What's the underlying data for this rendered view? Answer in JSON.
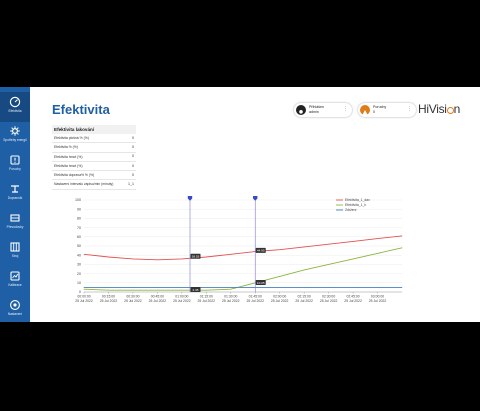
{
  "app": {
    "title": "Efektivita",
    "logo_main": "HiVisi",
    "logo_tail": "n",
    "accent": "#1f5fa6",
    "logo_accent": "#e07b1a"
  },
  "sidebar": {
    "items": [
      {
        "label": "Efektivita",
        "icon": "gauge-icon",
        "active": true
      },
      {
        "label": "Spotřeby energií",
        "icon": "gear-icon",
        "active": false
      },
      {
        "label": "Poruchy",
        "icon": "alert-icon",
        "active": false
      },
      {
        "label": "Dopravník",
        "icon": "conveyor-icon",
        "active": false
      },
      {
        "label": "Převodovky",
        "icon": "drive-icon",
        "active": false
      },
      {
        "label": "Stroj",
        "icon": "grid-icon",
        "active": false
      },
      {
        "label": "Kalibrace",
        "icon": "calibration-icon",
        "active": false
      },
      {
        "label": "Nastavení",
        "icon": "settings-icon",
        "active": false
      }
    ]
  },
  "header": {
    "user": {
      "line1": "Přihlášen",
      "line2": "admin",
      "icon": "user-icon"
    },
    "alarms": {
      "line1": "Poruchy",
      "line2": "0",
      "icon": "alarm-icon"
    }
  },
  "panel": {
    "title": "Efektivita lakování",
    "rows": [
      {
        "label": "Efektivita plošná % (%)",
        "value": "0"
      },
      {
        "label": "Efektivita % (%)",
        "value": "0"
      },
      {
        "label": "Efektivita hmot (%)",
        "value": "0"
      },
      {
        "label": "Efektivita hmot (%)",
        "value": "0"
      },
      {
        "label": "Efektivita doprava% % (%)",
        "value": "0"
      },
      {
        "label": "Nastavení intervalu zápisu/min (minuty)",
        "value": "1_1"
      }
    ]
  },
  "chart_data": {
    "type": "line",
    "ylim": [
      0,
      100
    ],
    "yticks": [
      0,
      10,
      20,
      30,
      40,
      50,
      60,
      70,
      80,
      90,
      100
    ],
    "x_ticks": [
      {
        "time": "00:00:00",
        "date": "25 Jul 2022"
      },
      {
        "time": "00:15:00",
        "date": "25 Jul 2022"
      },
      {
        "time": "00:30:00",
        "date": "25 Jul 2022"
      },
      {
        "time": "00:45:00",
        "date": "25 Jul 2022"
      },
      {
        "time": "01:00:00",
        "date": "25 Jul 2022"
      },
      {
        "time": "01:15:00",
        "date": "25 Jul 2022"
      },
      {
        "time": "01:30:00",
        "date": "25 Jul 2022"
      },
      {
        "time": "01:45:00",
        "date": "25 Jul 2022"
      },
      {
        "time": "02:00:00",
        "date": "25 Jul 2022"
      },
      {
        "time": "02:15:00",
        "date": "25 Jul 2022"
      },
      {
        "time": "02:30:00",
        "date": "25 Jul 2022"
      },
      {
        "time": "02:45:00",
        "date": "25 Jul 2022"
      },
      {
        "time": "03:00:00",
        "date": "25 Jul 2022"
      }
    ],
    "x_range": [
      "00:00:00",
      "03:15:00"
    ],
    "series": [
      {
        "name": "Efektivita_1_dav",
        "color": "#e05252",
        "points": [
          [
            "00:00:00",
            41
          ],
          [
            "00:15:00",
            38
          ],
          [
            "00:30:00",
            36
          ],
          [
            "00:45:00",
            35
          ],
          [
            "01:00:00",
            36
          ],
          [
            "01:15:00",
            38
          ],
          [
            "01:30:00",
            41
          ],
          [
            "01:45:00",
            44
          ],
          [
            "02:00:00",
            46
          ],
          [
            "02:15:00",
            49
          ],
          [
            "02:30:00",
            52
          ],
          [
            "02:45:00",
            55
          ],
          [
            "03:00:00",
            58
          ],
          [
            "03:15:00",
            61
          ]
        ]
      },
      {
        "name": "Efektivita_1_h",
        "color": "#8bb53d",
        "points": [
          [
            "00:00:00",
            3
          ],
          [
            "00:15:00",
            2
          ],
          [
            "00:30:00",
            2
          ],
          [
            "00:45:00",
            2
          ],
          [
            "01:00:00",
            2
          ],
          [
            "01:15:00",
            2
          ],
          [
            "01:30:00",
            3
          ],
          [
            "01:45:00",
            10
          ],
          [
            "02:00:00",
            17
          ],
          [
            "02:15:00",
            24
          ],
          [
            "02:30:00",
            30
          ],
          [
            "02:45:00",
            36
          ],
          [
            "03:00:00",
            42
          ],
          [
            "03:15:00",
            48
          ]
        ]
      },
      {
        "name": "Zdržení",
        "color": "#4a7fc1",
        "points": [
          [
            "00:00:00",
            5
          ],
          [
            "00:15:00",
            5
          ],
          [
            "00:30:00",
            5
          ],
          [
            "00:45:00",
            5
          ],
          [
            "01:00:00",
            5
          ],
          [
            "01:15:00",
            5
          ],
          [
            "01:30:00",
            5
          ],
          [
            "01:45:00",
            5
          ],
          [
            "02:00:00",
            5
          ],
          [
            "02:15:00",
            5
          ],
          [
            "02:30:00",
            5
          ],
          [
            "02:45:00",
            5
          ],
          [
            "03:00:00",
            5
          ],
          [
            "03:15:00",
            5
          ]
        ]
      }
    ],
    "cursors": [
      {
        "time": "01:05:00",
        "labels": [
          {
            "value": "38.55",
            "y": 38.55
          },
          {
            "value": "2.35",
            "y": 2.35
          }
        ]
      },
      {
        "time": "01:45:00",
        "labels": [
          {
            "value": "44.95",
            "y": 44.95
          },
          {
            "value": "10.05",
            "y": 10.05
          }
        ]
      }
    ],
    "legend_position": "top-right",
    "grid": true
  }
}
